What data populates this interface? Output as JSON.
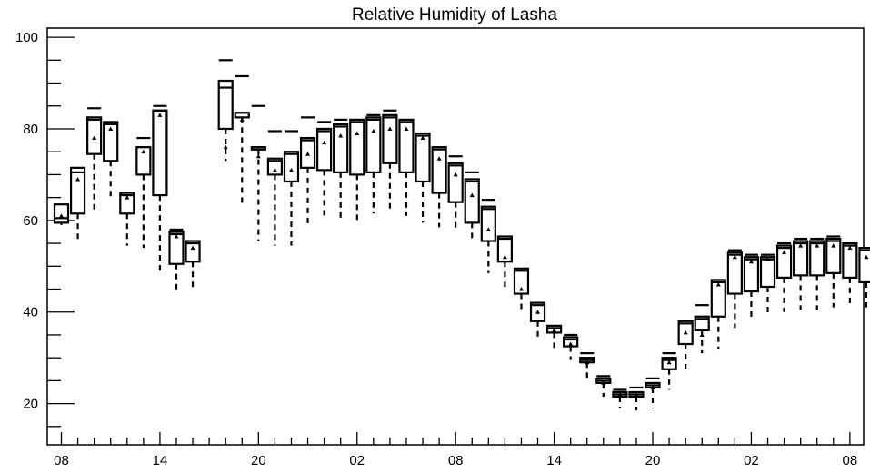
{
  "chart_data": {
    "type": "box",
    "title": "Relative Humidity of Lasha",
    "xlabel": "",
    "ylabel": "",
    "ylim": [
      11,
      102
    ],
    "y_ticks": [
      20,
      40,
      60,
      80,
      100
    ],
    "x_tick_labels": [
      "08",
      "14",
      "20",
      "02",
      "08",
      "14",
      "20",
      "02",
      "08"
    ],
    "x_tick_positions": [
      0,
      6,
      12,
      18,
      24,
      30,
      36,
      42,
      48
    ],
    "grid": false,
    "boxes": [
      {
        "x": 0,
        "q1": 59.5,
        "q3": 63.5,
        "wlo": 59.0,
        "whi": 68.0,
        "median": 60.5,
        "mean": 61.0,
        "top": null
      },
      {
        "x": 1,
        "q1": 61.5,
        "q3": 71.5,
        "wlo": 55.0,
        "whi": 73.0,
        "median": 70.5,
        "mean": 69.0,
        "top": null
      },
      {
        "x": 2,
        "q1": 74.5,
        "q3": 82.5,
        "wlo": 61.5,
        "whi": 82.5,
        "median": 82.0,
        "mean": 78.0,
        "top": 84.5
      },
      {
        "x": 3,
        "q1": 73.0,
        "q3": 81.5,
        "wlo": 64.5,
        "whi": 81.5,
        "median": 81.0,
        "mean": 80.0,
        "top": null
      },
      {
        "x": 4,
        "q1": 61.5,
        "q3": 66.0,
        "wlo": 54.5,
        "whi": 67.0,
        "median": 65.5,
        "mean": 65.0,
        "top": null
      },
      {
        "x": 5,
        "q1": 70.0,
        "q3": 76.0,
        "wlo": 54.0,
        "whi": 80.5,
        "median": 76.0,
        "mean": 75.0,
        "top": 78.0
      },
      {
        "x": 6,
        "q1": 65.5,
        "q3": 84.0,
        "wlo": 49.0,
        "whi": 84.0,
        "median": 84.0,
        "mean": 83.0,
        "top": 85.0
      },
      {
        "x": 7,
        "q1": 50.5,
        "q3": 57.5,
        "wlo": 44.0,
        "whi": 57.5,
        "median": 57.0,
        "mean": 56.5,
        "top": 58.0
      },
      {
        "x": 8,
        "q1": 51.0,
        "q3": 55.5,
        "wlo": 44.5,
        "whi": 56.0,
        "median": 55.0,
        "mean": 54.0,
        "top": null
      },
      {
        "x": 10,
        "q1": 80.0,
        "q3": 90.5,
        "wlo": 73.0,
        "whi": 90.5,
        "median": 89.0,
        "mean": 76.0,
        "top": 95.0
      },
      {
        "x": 11,
        "q1": 82.5,
        "q3": 83.5,
        "wlo": 63.5,
        "whi": 83.5,
        "median": 83.5,
        "mean": 82.0,
        "top": 91.5
      },
      {
        "x": 12,
        "q1": 75.5,
        "q3": 76.0,
        "wlo": 55.5,
        "whi": 76.0,
        "median": 75.5,
        "mean": 74.0,
        "top": 85.0
      },
      {
        "x": 13,
        "q1": 70.0,
        "q3": 73.5,
        "wlo": 54.5,
        "whi": 73.5,
        "median": 73.0,
        "mean": 71.0,
        "top": 79.5
      },
      {
        "x": 14,
        "q1": 68.5,
        "q3": 75.0,
        "wlo": 54.5,
        "whi": 75.0,
        "median": 74.5,
        "mean": 71.0,
        "top": 79.5
      },
      {
        "x": 15,
        "q1": 71.5,
        "q3": 78.0,
        "wlo": 58.5,
        "whi": 78.0,
        "median": 77.5,
        "mean": 74.5,
        "top": 82.5
      },
      {
        "x": 16,
        "q1": 71.0,
        "q3": 80.0,
        "wlo": 60.5,
        "whi": 80.0,
        "median": 79.5,
        "mean": 77.0,
        "top": 81.5
      },
      {
        "x": 17,
        "q1": 70.5,
        "q3": 81.0,
        "wlo": 60.5,
        "whi": 81.0,
        "median": 80.5,
        "mean": 78.5,
        "top": 82.0
      },
      {
        "x": 18,
        "q1": 70.0,
        "q3": 82.0,
        "wlo": 60.0,
        "whi": 82.0,
        "median": 81.5,
        "mean": 79.0,
        "top": null
      },
      {
        "x": 19,
        "q1": 70.5,
        "q3": 82.5,
        "wlo": 61.5,
        "whi": 82.5,
        "median": 82.0,
        "mean": 79.5,
        "top": 83.0
      },
      {
        "x": 20,
        "q1": 72.5,
        "q3": 83.0,
        "wlo": 62.0,
        "whi": 83.0,
        "median": 82.5,
        "mean": 80.0,
        "top": 84.0
      },
      {
        "x": 21,
        "q1": 70.5,
        "q3": 82.0,
        "wlo": 61.0,
        "whi": 82.0,
        "median": 81.5,
        "mean": 80.0,
        "top": null
      },
      {
        "x": 22,
        "q1": 68.5,
        "q3": 79.0,
        "wlo": 59.5,
        "whi": 79.0,
        "median": 78.5,
        "mean": 78.0,
        "top": null
      },
      {
        "x": 23,
        "q1": 66.0,
        "q3": 76.0,
        "wlo": 58.5,
        "whi": 76.0,
        "median": 75.5,
        "mean": 73.5,
        "top": null
      },
      {
        "x": 24,
        "q1": 64.0,
        "q3": 72.5,
        "wlo": 57.5,
        "whi": 72.5,
        "median": 72.0,
        "mean": 70.0,
        "top": 74.0
      },
      {
        "x": 25,
        "q1": 59.5,
        "q3": 69.0,
        "wlo": 55.5,
        "whi": 69.0,
        "median": 68.5,
        "mean": 65.5,
        "top": 70.5
      },
      {
        "x": 26,
        "q1": 55.5,
        "q3": 63.0,
        "wlo": 48.5,
        "whi": 63.0,
        "median": 62.5,
        "mean": 58.0,
        "top": 64.5
      },
      {
        "x": 27,
        "q1": 51.0,
        "q3": 56.5,
        "wlo": 45.0,
        "whi": 56.5,
        "median": 56.0,
        "mean": 52.0,
        "top": null
      },
      {
        "x": 28,
        "q1": 44.0,
        "q3": 49.5,
        "wlo": 40.0,
        "whi": 49.5,
        "median": 49.0,
        "mean": 45.0,
        "top": null
      },
      {
        "x": 29,
        "q1": 38.0,
        "q3": 42.0,
        "wlo": 34.0,
        "whi": 42.0,
        "median": 41.5,
        "mean": 40.0,
        "top": null
      },
      {
        "x": 30,
        "q1": 35.5,
        "q3": 37.0,
        "wlo": 32.0,
        "whi": 37.0,
        "median": 36.5,
        "mean": 36.0,
        "top": null
      },
      {
        "x": 31,
        "q1": 32.5,
        "q3": 34.5,
        "wlo": 29.5,
        "whi": 34.5,
        "median": 34.0,
        "mean": 33.0,
        "top": 35.0
      },
      {
        "x": 32,
        "q1": 29.0,
        "q3": 30.0,
        "wlo": 25.5,
        "whi": 30.0,
        "median": 29.5,
        "mean": 29.0,
        "top": 31.0
      },
      {
        "x": 33,
        "q1": 24.5,
        "q3": 25.5,
        "wlo": 21.5,
        "whi": 25.5,
        "median": 25.0,
        "mean": 24.5,
        "top": 26.0
      },
      {
        "x": 34,
        "q1": 21.5,
        "q3": 22.5,
        "wlo": 19.0,
        "whi": 22.5,
        "median": 22.0,
        "mean": 22.0,
        "top": 23.0
      },
      {
        "x": 35,
        "q1": 21.5,
        "q3": 22.5,
        "wlo": 18.5,
        "whi": 22.5,
        "median": 22.0,
        "mean": 22.0,
        "top": 23.5
      },
      {
        "x": 36,
        "q1": 23.5,
        "q3": 24.5,
        "wlo": 19.0,
        "whi": 24.5,
        "median": 24.0,
        "mean": 23.5,
        "top": 25.5
      },
      {
        "x": 37,
        "q1": 27.5,
        "q3": 30.0,
        "wlo": 23.0,
        "whi": 30.0,
        "median": 29.5,
        "mean": 29.0,
        "top": 31.0
      },
      {
        "x": 38,
        "q1": 33.0,
        "q3": 38.0,
        "wlo": 27.0,
        "whi": 38.0,
        "median": 37.5,
        "mean": 35.5,
        "top": null
      },
      {
        "x": 39,
        "q1": 36.0,
        "q3": 39.0,
        "wlo": 31.0,
        "whi": 39.0,
        "median": 38.5,
        "mean": 35.0,
        "top": 41.5
      },
      {
        "x": 40,
        "q1": 39.0,
        "q3": 47.0,
        "wlo": 32.0,
        "whi": 47.0,
        "median": 46.5,
        "mean": 46.0,
        "top": null
      },
      {
        "x": 41,
        "q1": 44.0,
        "q3": 53.0,
        "wlo": 36.5,
        "whi": 53.0,
        "median": 52.5,
        "mean": 52.0,
        "top": 53.5
      },
      {
        "x": 42,
        "q1": 44.5,
        "q3": 52.0,
        "wlo": 38.5,
        "whi": 52.0,
        "median": 51.5,
        "mean": 51.0,
        "top": 52.5
      },
      {
        "x": 43,
        "q1": 45.5,
        "q3": 52.0,
        "wlo": 39.5,
        "whi": 52.0,
        "median": 51.5,
        "mean": 51.5,
        "top": 52.5
      },
      {
        "x": 44,
        "q1": 47.5,
        "q3": 54.5,
        "wlo": 40.0,
        "whi": 54.5,
        "median": 54.0,
        "mean": 53.0,
        "top": 55.0
      },
      {
        "x": 45,
        "q1": 48.0,
        "q3": 55.5,
        "wlo": 40.5,
        "whi": 55.5,
        "median": 55.0,
        "mean": 54.5,
        "top": 56.0
      },
      {
        "x": 46,
        "q1": 48.0,
        "q3": 55.5,
        "wlo": 40.5,
        "whi": 55.5,
        "median": 55.0,
        "mean": 54.5,
        "top": 56.0
      },
      {
        "x": 47,
        "q1": 48.5,
        "q3": 56.0,
        "wlo": 41.0,
        "whi": 56.0,
        "median": 55.5,
        "mean": 54.5,
        "top": 56.5
      },
      {
        "x": 48,
        "q1": 47.5,
        "q3": 55.0,
        "wlo": 41.0,
        "whi": 55.0,
        "median": 54.5,
        "mean": 54.0,
        "top": null
      },
      {
        "x": 49,
        "q1": 46.5,
        "q3": 54.0,
        "wlo": 41.0,
        "whi": 54.0,
        "median": 53.5,
        "mean": 52.0,
        "top": null
      }
    ]
  }
}
